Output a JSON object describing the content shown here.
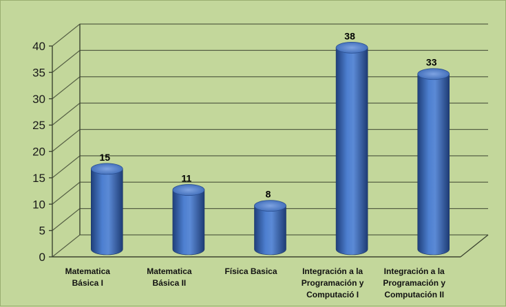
{
  "chart_data": {
    "type": "bar",
    "style": "3d-cylinder",
    "categories": [
      [
        "Matematica",
        "Básica I"
      ],
      [
        "Matematica",
        "Básica II"
      ],
      [
        "Física Basica"
      ],
      [
        "Integración a la",
        "Programación y",
        "Computació I"
      ],
      [
        "Integración a la",
        "Programación y",
        "Computación II"
      ]
    ],
    "values": [
      15,
      11,
      8,
      38,
      33
    ],
    "value_labels": [
      "15",
      "11",
      "8",
      "38",
      "33"
    ],
    "ylim": [
      0,
      40
    ],
    "yticks": [
      "0",
      "5",
      "10",
      "15",
      "20",
      "25",
      "30",
      "35",
      "40"
    ],
    "grid": true,
    "legend": "none",
    "colors": {
      "background": "#c3d79b",
      "bar": "#3f70c0",
      "bar_dark": "#1f3f7a",
      "bar_light": "#8fb0e8"
    }
  }
}
